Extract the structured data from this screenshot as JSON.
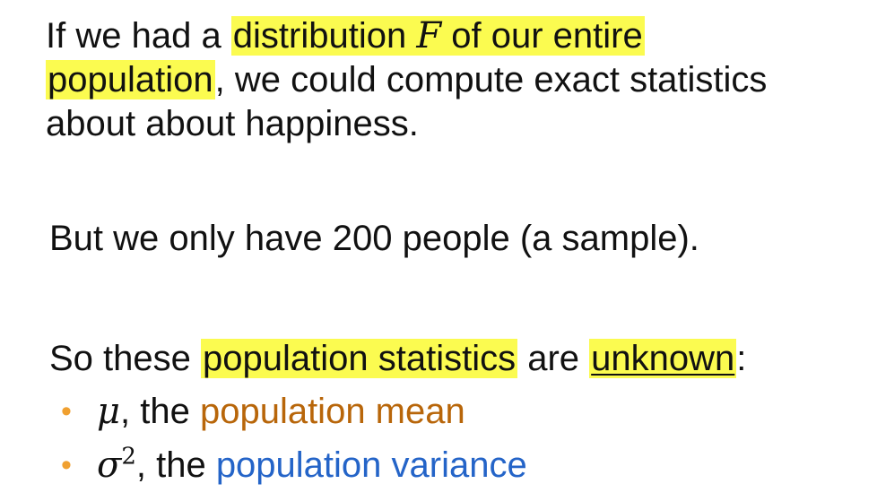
{
  "para1": {
    "t1": "If we had a ",
    "h1a": "distribution ",
    "h1math": "F",
    "h1b": " of our entire ",
    "h2": "population",
    "t2": ", we could compute exact statistics",
    "t3": "about about happiness."
  },
  "para2": {
    "text": "But we only have 200 people (a sample)."
  },
  "para3": {
    "t1": "So these ",
    "h1": "population statistics",
    "t2": " are ",
    "u1": "unknown",
    "t3": ":"
  },
  "bullets": [
    {
      "marker": "•",
      "symbol": "μ",
      "sep": ", the ",
      "label": "population mean",
      "label_color": "#b8660a"
    },
    {
      "marker": "•",
      "symbol": "σ",
      "superscript": "2",
      "sep": ", the ",
      "label": "population variance",
      "label_color": "#2464c8"
    }
  ],
  "colors": {
    "highlight": "#fbfb50",
    "bullet": "#f0a030"
  }
}
